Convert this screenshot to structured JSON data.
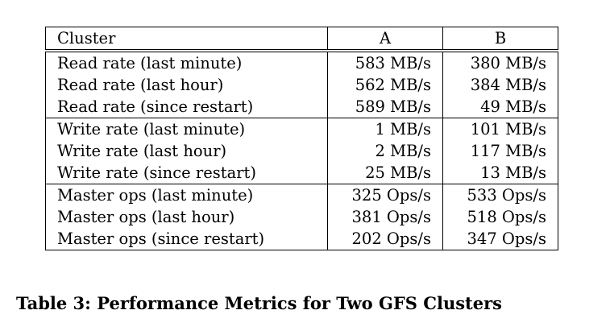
{
  "table": {
    "header": [
      "Cluster",
      "A",
      "B"
    ],
    "groups": [
      {
        "rows": [
          {
            "label": "Read rate (last minute)",
            "a": "583 MB/s",
            "b": "380 MB/s"
          },
          {
            "label": "Read rate (last hour)",
            "a": "562 MB/s",
            "b": "384 MB/s"
          },
          {
            "label": "Read rate (since restart)",
            "a": "589 MB/s",
            "b": "49 MB/s"
          }
        ]
      },
      {
        "rows": [
          {
            "label": "Write rate (last minute)",
            "a": "1 MB/s",
            "b": "101 MB/s"
          },
          {
            "label": "Write rate (last hour)",
            "a": "2 MB/s",
            "b": "117 MB/s"
          },
          {
            "label": "Write rate (since restart)",
            "a": "25 MB/s",
            "b": "13 MB/s"
          }
        ]
      },
      {
        "rows": [
          {
            "label": "Master ops (last minute)",
            "a": "325 Ops/s",
            "b": "533 Ops/s"
          },
          {
            "label": "Master ops (last hour)",
            "a": "381 Ops/s",
            "b": "518 Ops/s"
          },
          {
            "label": "Master ops (since restart)",
            "a": "202 Ops/s",
            "b": "347 Ops/s"
          }
        ]
      }
    ]
  },
  "caption": "Table 3:  Performance Metrics for Two GFS Clusters"
}
